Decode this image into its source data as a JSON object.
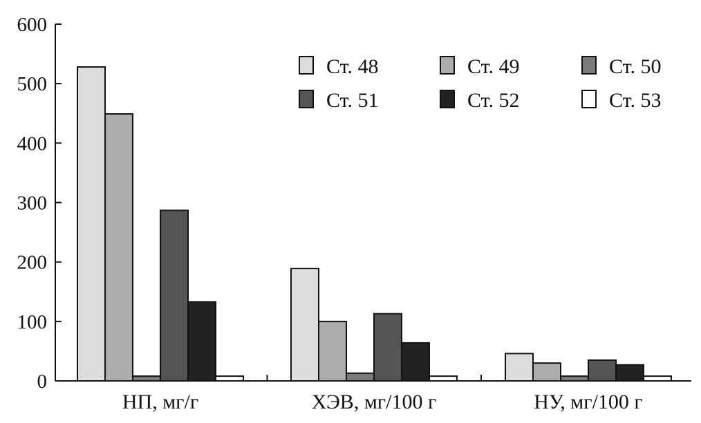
{
  "chart_data": {
    "type": "bar",
    "title": "",
    "xlabel": "",
    "ylabel": "",
    "ylim": [
      0,
      600
    ],
    "yticks": [
      "0",
      "100",
      "200",
      "300",
      "400",
      "500",
      "600"
    ],
    "categories": [
      "НП, мг/г",
      "ХЭВ, мг/100 г",
      "НУ, мг/100 г"
    ],
    "legend_position": "top-right",
    "grid": false,
    "series": [
      {
        "name": "Ст. 48",
        "color": "#dcdcdc",
        "values": [
          528,
          189,
          46
        ]
      },
      {
        "name": "Ст. 49",
        "color": "#adadad",
        "values": [
          449,
          100,
          30
        ]
      },
      {
        "name": "Ст. 50",
        "color": "#7a7a7a",
        "values": [
          8,
          13,
          8
        ]
      },
      {
        "name": "Ст. 51",
        "color": "#555555",
        "values": [
          287,
          113,
          35
        ]
      },
      {
        "name": "Ст. 52",
        "color": "#222222",
        "values": [
          133,
          64,
          27
        ]
      },
      {
        "name": "Ст. 53",
        "color": "#ffffff",
        "values": [
          8,
          8,
          8
        ]
      }
    ]
  }
}
